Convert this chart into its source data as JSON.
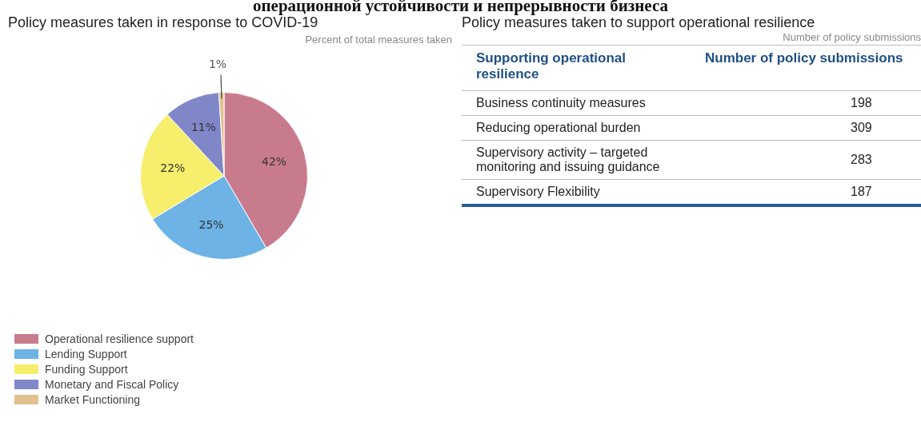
{
  "chart_data": [
    {
      "type": "other",
      "title": "операционной устойчивости и непрерывности бизнеса"
    },
    {
      "type": "pie",
      "title": "Policy measures taken in response to COVID-19",
      "subtitle": "Percent of total measures taken",
      "categories": [
        "Operational resilience support",
        "Lending Support",
        "Funding Support",
        "Monetary and Fiscal Policy",
        "Market Functioning"
      ],
      "values": [
        42,
        25,
        22,
        11,
        1
      ],
      "colors": [
        "#c97b8e",
        "#6db3e6",
        "#f7ee6c",
        "#8087c9",
        "#e2c08f"
      ],
      "value_labels": [
        "42%",
        "25%",
        "22%",
        "11%",
        "1%"
      ],
      "legend": "bottom left"
    },
    {
      "type": "other",
      "title": "Policy measures taken to support operational resilience",
      "subtitle": "Number of policy submissions",
      "annotations": [
        "Supporting operational resilience",
        "Number of policy submissions"
      ],
      "categories": [
        "Business continuity measures",
        "Reducing operational burden",
        "Supervisory activity – targeted monitoring and issuing guidance",
        "Supervisory Flexibility"
      ],
      "values": [
        198,
        309,
        283,
        187
      ],
      "data_labels": true
    }
  ]
}
